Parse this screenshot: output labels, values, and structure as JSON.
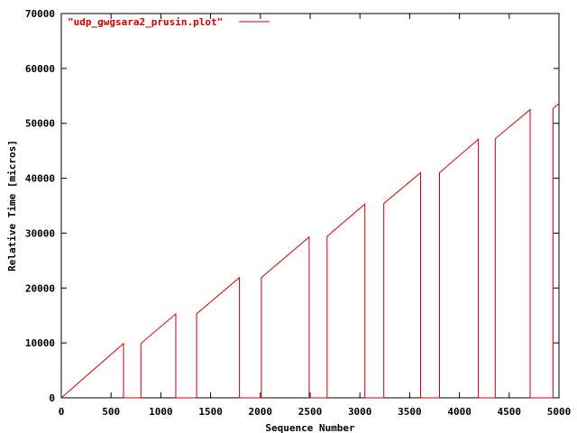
{
  "chart_data": {
    "type": "line",
    "title": "",
    "xlabel": "Sequence Number",
    "ylabel": "Relative Time [micros]",
    "xlim": [
      0,
      5000
    ],
    "ylim": [
      0,
      70000
    ],
    "xticks": [
      0,
      500,
      1000,
      1500,
      2000,
      2500,
      3000,
      3500,
      4000,
      4500,
      5000
    ],
    "yticks": [
      0,
      10000,
      20000,
      30000,
      40000,
      50000,
      60000,
      70000
    ],
    "x_tick_labels": [
      "0",
      "500",
      "1000",
      "1500",
      "2000",
      "2500",
      "3000",
      "3500",
      "4000",
      "4500",
      "5000"
    ],
    "y_tick_labels": [
      "0",
      "10000",
      "20000",
      "30000",
      "40000",
      "50000",
      "60000",
      "70000"
    ],
    "grid": false,
    "legend_position": "top-left",
    "series": [
      {
        "name": "\"udp_gwgsara2_prusin.plot\"",
        "color": "#cc0000",
        "points": [
          [
            0,
            0
          ],
          [
            625,
            9900
          ],
          [
            625,
            0
          ],
          [
            800,
            0
          ],
          [
            800,
            9900
          ],
          [
            1150,
            15300
          ],
          [
            1150,
            0
          ],
          [
            1360,
            0
          ],
          [
            1360,
            15300
          ],
          [
            1790,
            21900
          ],
          [
            1790,
            0
          ],
          [
            2010,
            0
          ],
          [
            2010,
            21900
          ],
          [
            2490,
            29300
          ],
          [
            2490,
            0
          ],
          [
            2670,
            0
          ],
          [
            2670,
            29400
          ],
          [
            3050,
            35300
          ],
          [
            3050,
            0
          ],
          [
            3240,
            0
          ],
          [
            3240,
            35400
          ],
          [
            3610,
            41000
          ],
          [
            3610,
            0
          ],
          [
            3800,
            0
          ],
          [
            3800,
            41000
          ],
          [
            4190,
            47100
          ],
          [
            4190,
            0
          ],
          [
            4360,
            0
          ],
          [
            4360,
            47200
          ],
          [
            4710,
            52500
          ],
          [
            4710,
            0
          ],
          [
            4940,
            0
          ],
          [
            4940,
            52700
          ],
          [
            5000,
            53600
          ]
        ]
      }
    ]
  }
}
